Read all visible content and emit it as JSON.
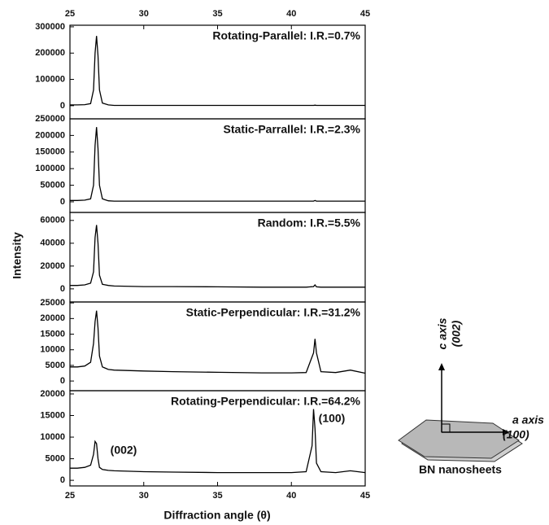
{
  "chart_data": {
    "type": "stacked-line",
    "xlabel": "Diffraction angle (θ)",
    "ylabel": "Intensity",
    "xlim": [
      25,
      45
    ],
    "xticks": [
      25,
      30,
      35,
      40,
      45
    ],
    "color": "#000000",
    "annotations": [
      "(002)",
      "(100)"
    ],
    "panels": [
      {
        "type": "line",
        "label": "Rotating-Parallel: I.R.=0.7%",
        "ylim": [
          -50000,
          306000
        ],
        "yticks": [
          0,
          100000,
          200000,
          300000
        ],
        "x": [
          25,
          25.5,
          26,
          26.4,
          26.6,
          26.7,
          26.8,
          26.9,
          27.0,
          27.2,
          27.6,
          28,
          30,
          32,
          35,
          38,
          40,
          41,
          41.5,
          41.6,
          41.7,
          42,
          43,
          44,
          45
        ],
        "values": [
          3000,
          3000,
          4000,
          8000,
          60000,
          200000,
          265000,
          190000,
          60000,
          10000,
          3000,
          1000,
          1000,
          1000,
          1000,
          1000,
          1000,
          1000,
          1000,
          2000,
          1000,
          1000,
          1000,
          1000,
          1000
        ]
      },
      {
        "type": "line",
        "label": "Static-Parrallel: I.R.=2.3%",
        "ylim": [
          -32000,
          250000
        ],
        "yticks": [
          0,
          50000,
          100000,
          150000,
          200000,
          250000
        ],
        "x": [
          25,
          25.5,
          26,
          26.4,
          26.6,
          26.7,
          26.8,
          26.9,
          27.0,
          27.2,
          27.6,
          28,
          30,
          32,
          35,
          38,
          40,
          41,
          41.5,
          41.6,
          41.7,
          42,
          43,
          44,
          45
        ],
        "values": [
          4000,
          4000,
          5000,
          9000,
          50000,
          170000,
          225000,
          160000,
          50000,
          9000,
          3000,
          2000,
          2000,
          2000,
          2000,
          2000,
          2000,
          2000,
          2000,
          4000,
          2000,
          2000,
          2000,
          2000,
          2000
        ]
      },
      {
        "type": "line",
        "label": "Random: I.R.=5.5%",
        "ylim": [
          -11500,
          67000
        ],
        "yticks": [
          0,
          20000,
          40000,
          60000
        ],
        "x": [
          25,
          25.5,
          26,
          26.4,
          26.6,
          26.7,
          26.8,
          26.9,
          27.0,
          27.2,
          27.6,
          28,
          30,
          32,
          35,
          38,
          40,
          41,
          41.5,
          41.6,
          41.7,
          42,
          43,
          44,
          45
        ],
        "values": [
          3000,
          3000,
          3500,
          5000,
          15000,
          45000,
          56000,
          40000,
          12000,
          4000,
          3000,
          2500,
          2000,
          2000,
          1800,
          1500,
          1500,
          1500,
          2000,
          3500,
          1800,
          1500,
          1500,
          1500,
          1500
        ]
      },
      {
        "type": "line",
        "label": "Static-Perpendicular: I.R.=31.2%",
        "ylim": [
          -3100,
          25300
        ],
        "yticks": [
          0,
          5000,
          10000,
          15000,
          20000,
          25000
        ],
        "x": [
          25,
          25.5,
          26,
          26.4,
          26.6,
          26.7,
          26.8,
          26.9,
          27.0,
          27.2,
          27.6,
          28,
          30,
          32,
          35,
          38,
          40,
          41,
          41.5,
          41.6,
          41.7,
          42,
          43,
          44,
          45
        ],
        "values": [
          4500,
          4500,
          4800,
          6000,
          12000,
          19000,
          22500,
          17000,
          8000,
          4500,
          3700,
          3500,
          3200,
          3000,
          2800,
          2600,
          2600,
          2700,
          9000,
          13500,
          9000,
          3000,
          2700,
          3500,
          2500
        ]
      },
      {
        "type": "line",
        "label": "Rotating-Perpendicular: I.R.=64.2%",
        "ylim": [
          -1300,
          20750
        ],
        "yticks": [
          0,
          5000,
          10000,
          15000,
          20000
        ],
        "x": [
          25,
          25.5,
          26,
          26.4,
          26.6,
          26.7,
          26.8,
          26.9,
          27.0,
          27.2,
          27.6,
          28,
          30,
          32,
          35,
          38,
          40,
          41,
          41.4,
          41.5,
          41.6,
          41.7,
          42,
          43,
          44,
          45
        ],
        "values": [
          2800,
          2800,
          3000,
          3500,
          6000,
          9000,
          8500,
          5000,
          3000,
          2500,
          2300,
          2200,
          2000,
          1900,
          1800,
          1800,
          1800,
          2000,
          8000,
          16500,
          12000,
          4000,
          2000,
          1800,
          2200,
          1800
        ]
      }
    ]
  },
  "diagram": {
    "c_axis": "c axis",
    "c_index": "(002)",
    "a_axis": "a axis",
    "a_index": "(100)",
    "caption": "BN nanosheets"
  }
}
